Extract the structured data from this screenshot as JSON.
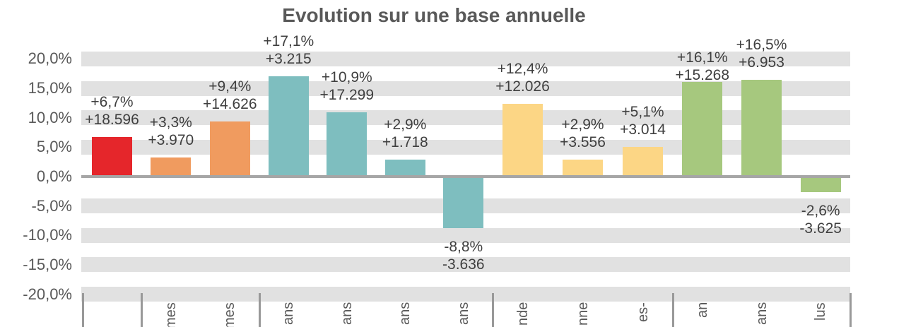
{
  "title": "Evolution sur une base annuelle",
  "chart_data": {
    "type": "bar",
    "title": "Evolution sur une base annuelle",
    "xlabel": "",
    "ylabel": "",
    "ylim": [
      -20,
      20
    ],
    "y_tick_step_percent": 5,
    "y_tick_labels": [
      "20,0%",
      "15,0%",
      "10,0%",
      "5,0%",
      "0,0%",
      "-5,0%",
      "-10,0%",
      "-15,0%",
      "-20,0%"
    ],
    "y_tick_values": [
      20,
      15,
      10,
      5,
      0,
      -5,
      -10,
      -15,
      -20
    ],
    "grid": "horizontal gray bands at every 5% except 0%",
    "legend_position": "none",
    "x_axis_note": "rotated category labels are cut off at the bottom edge; only trailing fragments visible",
    "groups": [
      {
        "name": "group-1",
        "color": "#e5262b",
        "bar_indices": [
          0
        ]
      },
      {
        "name": "group-2",
        "color": "#f09b5f",
        "bar_indices": [
          1,
          2
        ]
      },
      {
        "name": "group-3",
        "color": "#7ebebf",
        "bar_indices": [
          3,
          4,
          5,
          6
        ]
      },
      {
        "name": "group-4",
        "color": "#fcd685",
        "bar_indices": [
          7,
          8,
          9
        ]
      },
      {
        "name": "group-5",
        "color": "#a6c87e",
        "bar_indices": [
          10,
          11,
          12
        ]
      }
    ],
    "bars": [
      {
        "pct": 6.7,
        "value": 18596,
        "pct_label": "+6,7%",
        "value_label": "+18.596",
        "color": "#e5262b",
        "x_label_visible_fragment": ""
      },
      {
        "pct": 3.3,
        "value": 3970,
        "pct_label": "+3,3%",
        "value_label": "+3.970",
        "color": "#f09b5f",
        "x_label_visible_fragment": "mes"
      },
      {
        "pct": 9.4,
        "value": 14626,
        "pct_label": "+9,4%",
        "value_label": "+14.626",
        "color": "#f09b5f",
        "x_label_visible_fragment": "mes"
      },
      {
        "pct": 17.1,
        "value": 3215,
        "pct_label": "+17,1%",
        "value_label": "+3.215",
        "color": "#7ebebf",
        "x_label_visible_fragment": "ans"
      },
      {
        "pct": 10.9,
        "value": 17299,
        "pct_label": "+10,9%",
        "value_label": "+17.299",
        "color": "#7ebebf",
        "x_label_visible_fragment": "ans"
      },
      {
        "pct": 2.9,
        "value": 1718,
        "pct_label": "+2,9%",
        "value_label": "+1.718",
        "color": "#7ebebf",
        "x_label_visible_fragment": "ans"
      },
      {
        "pct": -8.8,
        "value": -3636,
        "pct_label": "-8,8%",
        "value_label": "-3.636",
        "color": "#7ebebf",
        "x_label_visible_fragment": "ans"
      },
      {
        "pct": 12.4,
        "value": 12026,
        "pct_label": "+12,4%",
        "value_label": "+12.026",
        "color": "#fcd685",
        "x_label_visible_fragment": "nde"
      },
      {
        "pct": 2.9,
        "value": 3556,
        "pct_label": "+2,9%",
        "value_label": "+3.556",
        "color": "#fcd685",
        "x_label_visible_fragment": "nne"
      },
      {
        "pct": 5.1,
        "value": 3014,
        "pct_label": "+5,1%",
        "value_label": "+3.014",
        "color": "#fcd685",
        "x_label_visible_fragment": "es-"
      },
      {
        "pct": 16.1,
        "value": 15268,
        "pct_label": "+16,1%",
        "value_label": "+15.268",
        "color": "#a6c87e",
        "x_label_visible_fragment": "an"
      },
      {
        "pct": 16.5,
        "value": 6953,
        "pct_label": "+16,5%",
        "value_label": "+6.953",
        "color": "#a6c87e",
        "x_label_visible_fragment": "ans"
      },
      {
        "pct": -2.6,
        "value": -3625,
        "pct_label": "-2,6%",
        "value_label": "-3.625",
        "color": "#a6c87e",
        "x_label_visible_fragment": "lus"
      }
    ],
    "colors": {
      "grid_band": "#e1e1e1",
      "zero_axis": "#a6a6a6",
      "category_tick": "#999999",
      "title_text": "#595959",
      "axis_text": "#595959",
      "data_label_text": "#3f3f3f"
    }
  }
}
